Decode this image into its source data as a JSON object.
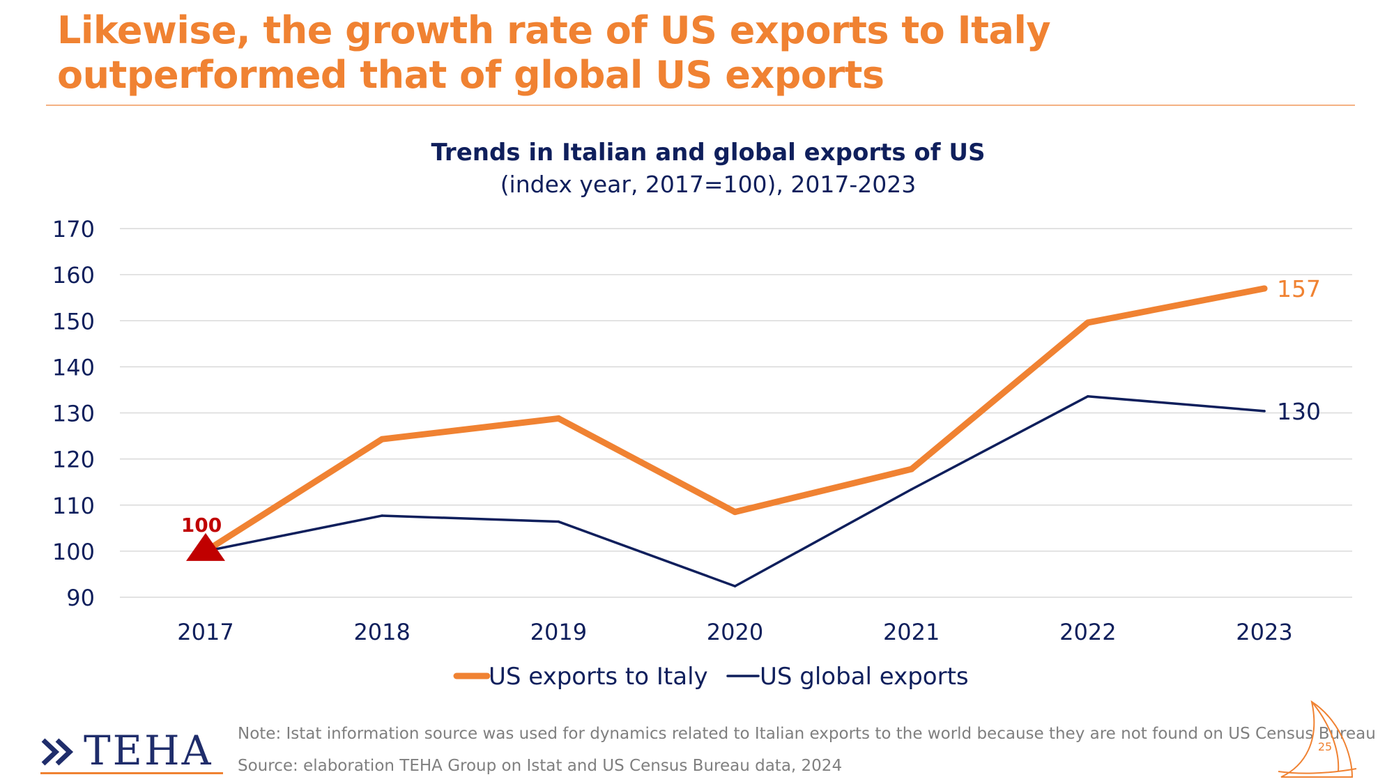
{
  "slide": {
    "title": "Likewise, the growth rate of US exports to Italy outperformed that of global US exports",
    "notes": [
      "Note: Istat information source was used for dynamics related to Italian exports to the world because they are not found on US Census Bureau",
      "Source: elaboration TEHA Group on Istat and US Census Bureau data, 2024"
    ],
    "logo_text": "TEHA",
    "page_number": "25"
  },
  "chart_data": {
    "type": "line",
    "title": "Trends in Italian and global exports of US",
    "subtitle": "(index year, 2017=100), 2017-2023",
    "x": [
      "2017",
      "2018",
      "2019",
      "2020",
      "2021",
      "2022",
      "2023"
    ],
    "ylim": [
      90,
      170
    ],
    "yticks": [
      90,
      100,
      110,
      120,
      130,
      140,
      150,
      160,
      170
    ],
    "grid": true,
    "legend_position": "bottom",
    "series": [
      {
        "name": "US exports to Italy",
        "color": "#F08232",
        "values": [
          100,
          124.3,
          128.8,
          108.5,
          117.8,
          149.6,
          157
        ],
        "end_label": "157"
      },
      {
        "name": "US global exports",
        "color": "#0F1F5C",
        "values": [
          100,
          107.7,
          106.4,
          92.4,
          113.4,
          133.6,
          130.4
        ],
        "end_label": "130"
      }
    ],
    "annotations": [
      {
        "text": "100",
        "x": "2017",
        "y": 100,
        "marker": "triangle",
        "color": "#C00000"
      }
    ]
  }
}
